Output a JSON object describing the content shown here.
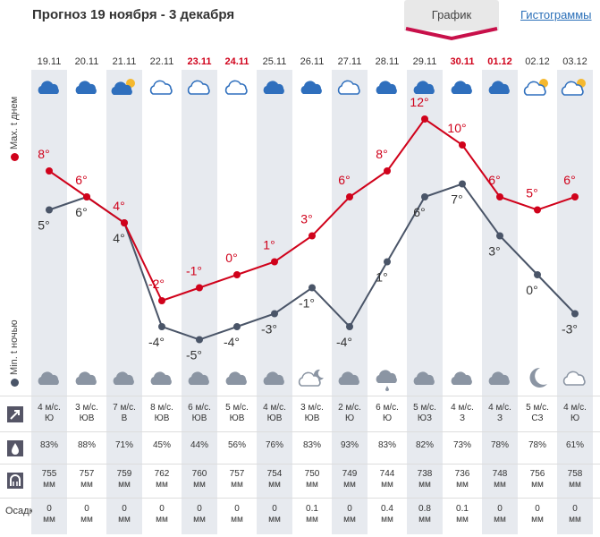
{
  "header": {
    "title": "Прогноз 19 ноября - 3 декабря",
    "tab_graph": "График",
    "tab_histogram": "Гистограммы"
  },
  "axis_labels": {
    "max": "Max. t днем",
    "min": "Min. t ночью"
  },
  "colors": {
    "max": "#d0021b",
    "min": "#4a5568",
    "weekend": "#d0021b"
  },
  "days": [
    {
      "date": "19.11",
      "weekend": false,
      "day_icon": "cloud-icon",
      "night_icon": "cloud-gray-icon",
      "max": 8,
      "min": 5,
      "wind": "4 м/с.",
      "dir": "Ю",
      "hum": "83%",
      "pres": "755",
      "prec": "0"
    },
    {
      "date": "20.11",
      "weekend": false,
      "day_icon": "cloud-icon",
      "night_icon": "cloud-gray-icon",
      "max": 6,
      "min": 6,
      "wind": "3 м/с.",
      "dir": "ЮВ",
      "hum": "88%",
      "pres": "757",
      "prec": "0"
    },
    {
      "date": "21.11",
      "weekend": false,
      "day_icon": "cloud-sun-icon",
      "night_icon": "cloud-gray-icon",
      "max": 4,
      "min": 4,
      "wind": "7 м/с.",
      "dir": "В",
      "hum": "71%",
      "pres": "759",
      "prec": "0"
    },
    {
      "date": "22.11",
      "weekend": false,
      "day_icon": "cloud-outline-icon",
      "night_icon": "cloud-gray-icon",
      "max": -2,
      "min": -4,
      "wind": "8 м/с.",
      "dir": "ЮВ",
      "hum": "45%",
      "pres": "762",
      "prec": "0"
    },
    {
      "date": "23.11",
      "weekend": true,
      "day_icon": "cloud-outline-icon",
      "night_icon": "cloud-gray-icon",
      "max": -1,
      "min": -5,
      "wind": "6 м/с.",
      "dir": "ЮВ",
      "hum": "44%",
      "pres": "760",
      "prec": "0"
    },
    {
      "date": "24.11",
      "weekend": true,
      "day_icon": "cloud-outline-icon",
      "night_icon": "cloud-gray-icon",
      "max": 0,
      "min": -4,
      "wind": "5 м/с.",
      "dir": "ЮВ",
      "hum": "56%",
      "pres": "757",
      "prec": "0"
    },
    {
      "date": "25.11",
      "weekend": false,
      "day_icon": "cloud-icon",
      "night_icon": "cloud-gray-icon",
      "max": 1,
      "min": -3,
      "wind": "4 м/с.",
      "dir": "ЮВ",
      "hum": "76%",
      "pres": "754",
      "prec": "0"
    },
    {
      "date": "26.11",
      "weekend": false,
      "day_icon": "cloud-icon",
      "night_icon": "cloud-moon-icon",
      "max": 3,
      "min": -1,
      "wind": "3 м/с.",
      "dir": "ЮВ",
      "hum": "83%",
      "pres": "750",
      "prec": "0.1"
    },
    {
      "date": "27.11",
      "weekend": false,
      "day_icon": "cloud-outline-icon",
      "night_icon": "cloud-gray-icon",
      "max": 6,
      "min": -4,
      "wind": "2 м/с.",
      "dir": "Ю",
      "hum": "93%",
      "pres": "749",
      "prec": "0"
    },
    {
      "date": "28.11",
      "weekend": false,
      "day_icon": "cloud-icon",
      "night_icon": "cloud-rain-icon",
      "max": 8,
      "min": 1,
      "wind": "6 м/с.",
      "dir": "Ю",
      "hum": "83%",
      "pres": "744",
      "prec": "0.4"
    },
    {
      "date": "29.11",
      "weekend": false,
      "day_icon": "cloud-icon",
      "night_icon": "cloud-gray-icon",
      "max": 12,
      "min": 6,
      "wind": "5 м/с.",
      "dir": "ЮЗ",
      "hum": "82%",
      "pres": "738",
      "prec": "0.8"
    },
    {
      "date": "30.11",
      "weekend": true,
      "day_icon": "cloud-icon",
      "night_icon": "cloud-gray-icon",
      "max": 10,
      "min": 7,
      "wind": "4 м/с.",
      "dir": "З",
      "hum": "73%",
      "pres": "736",
      "prec": "0.1"
    },
    {
      "date": "01.12",
      "weekend": true,
      "day_icon": "cloud-icon",
      "night_icon": "cloud-gray-icon",
      "max": 6,
      "min": 3,
      "wind": "4 м/с.",
      "dir": "З",
      "hum": "78%",
      "pres": "748",
      "prec": "0"
    },
    {
      "date": "02.12",
      "weekend": false,
      "day_icon": "cloud-sun-outline-icon",
      "night_icon": "moon-icon",
      "max": 5,
      "min": 0,
      "wind": "5 м/с.",
      "dir": "СЗ",
      "hum": "78%",
      "pres": "756",
      "prec": "0"
    },
    {
      "date": "03.12",
      "weekend": false,
      "day_icon": "cloud-sun-outline-icon",
      "night_icon": "cloud-gray-outline-icon",
      "max": 6,
      "min": -3,
      "wind": "4 м/с.",
      "dir": "Ю",
      "hum": "61%",
      "pres": "758",
      "prec": "0"
    }
  ],
  "units": {
    "pressure": "мм",
    "precip": "мм"
  },
  "row_labels": {
    "precip": "Осадки"
  },
  "row_icons": {
    "wind": "wind-arrow-icon",
    "humidity": "drop-icon",
    "pressure": "barometer-icon"
  }
}
